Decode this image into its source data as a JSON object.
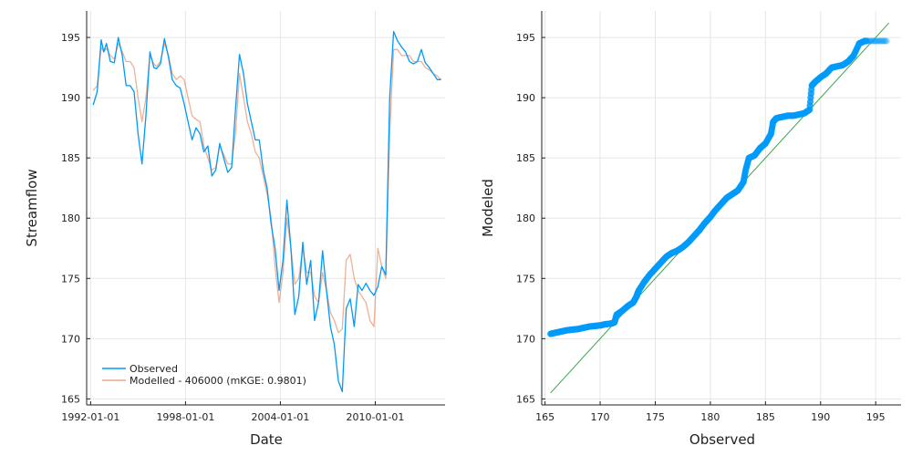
{
  "colors": {
    "observed": "#009af9",
    "modelled": "#e26f46",
    "scatter": "#009af9",
    "one_to_one": "#3da44d",
    "grid": "#e6e6e6",
    "axis": "#222222"
  },
  "chart_data": [
    {
      "type": "line",
      "xlabel": "Date",
      "ylabel": "Streamflow",
      "xticks": [
        "1992-01-01",
        "1998-01-01",
        "2004-01-01",
        "2010-01-01"
      ],
      "yticks": [
        165,
        170,
        175,
        180,
        185,
        190,
        195
      ],
      "xlim": [
        "1991-10-01",
        "2014-06-01"
      ],
      "ylim": [
        164.5,
        197.2
      ],
      "grid": true,
      "legend_position": "bottom-left",
      "series": [
        {
          "name": "Observed",
          "x": [
            "1992-03-01",
            "1992-06-01",
            "1992-09-01",
            "1992-11-01",
            "1993-01-01",
            "1993-04-01",
            "1993-07-01",
            "1993-10-01",
            "1994-01-01",
            "1994-04-01",
            "1994-07-01",
            "1994-10-01",
            "1995-01-01",
            "1995-04-01",
            "1995-07-01",
            "1995-10-01",
            "1996-01-01",
            "1996-03-01",
            "1996-06-01",
            "1996-09-01",
            "1996-12-01",
            "1997-03-01",
            "1997-06-01",
            "1997-09-01",
            "1997-12-01",
            "1998-03-01",
            "1998-06-01",
            "1998-09-01",
            "1998-12-01",
            "1999-03-01",
            "1999-06-01",
            "1999-09-01",
            "1999-12-01",
            "2000-03-01",
            "2000-06-01",
            "2000-09-01",
            "2000-12-01",
            "2001-03-01",
            "2001-06-01",
            "2001-09-01",
            "2001-12-01",
            "2002-03-01",
            "2002-06-01",
            "2002-09-01",
            "2002-12-01",
            "2003-03-01",
            "2003-06-01",
            "2003-09-01",
            "2003-12-01",
            "2004-03-01",
            "2004-06-01",
            "2004-09-01",
            "2004-12-01",
            "2005-03-01",
            "2005-06-01",
            "2005-09-01",
            "2005-12-01",
            "2006-03-01",
            "2006-06-01",
            "2006-09-01",
            "2006-12-01",
            "2007-03-01",
            "2007-06-01",
            "2007-09-01",
            "2007-12-01",
            "2008-03-01",
            "2008-06-01",
            "2008-09-01",
            "2008-12-01",
            "2009-03-01",
            "2009-06-01",
            "2009-09-01",
            "2009-12-01",
            "2010-03-01",
            "2010-06-01",
            "2010-09-01",
            "2010-12-01",
            "2011-03-01",
            "2011-06-01",
            "2011-09-01",
            "2011-12-01",
            "2012-03-01",
            "2012-06-01",
            "2012-09-01",
            "2012-12-01",
            "2013-03-01",
            "2013-06-01",
            "2013-09-01",
            "2013-12-01",
            "2014-03-01"
          ],
          "y": [
            189.4,
            190.5,
            194.8,
            193.8,
            194.5,
            193.0,
            192.9,
            195.0,
            193.5,
            191.0,
            191.0,
            190.5,
            187.0,
            184.5,
            188.5,
            193.8,
            192.5,
            192.4,
            192.8,
            194.9,
            193.4,
            191.5,
            191.0,
            190.8,
            189.5,
            188.0,
            186.5,
            187.5,
            187.0,
            185.5,
            186.0,
            183.5,
            184.0,
            186.2,
            185.0,
            183.8,
            184.2,
            189.0,
            193.6,
            192.0,
            189.5,
            188.0,
            186.5,
            186.5,
            184.0,
            182.5,
            179.5,
            177.5,
            174.0,
            176.5,
            181.5,
            177.5,
            172.0,
            173.5,
            178.0,
            174.5,
            176.5,
            171.5,
            173.0,
            177.3,
            174.0,
            171.0,
            169.5,
            166.5,
            165.6,
            172.5,
            173.3,
            171.0,
            174.5,
            174.0,
            174.6,
            174.0,
            173.6,
            174.3,
            176.0,
            175.3,
            190.0,
            195.5,
            194.7,
            194.2,
            193.8,
            193.0,
            192.8,
            193.0,
            194.0,
            192.9,
            192.5,
            192.0,
            191.5,
            191.5
          ]
        },
        {
          "name": "Modelled - 406000 (mKGE: 0.9801)",
          "x": [
            "1992-03-01",
            "1992-06-01",
            "1992-09-01",
            "1992-11-01",
            "1993-01-01",
            "1993-04-01",
            "1993-07-01",
            "1993-10-01",
            "1994-01-01",
            "1994-04-01",
            "1994-07-01",
            "1994-10-01",
            "1995-01-01",
            "1995-04-01",
            "1995-07-01",
            "1995-10-01",
            "1996-01-01",
            "1996-03-01",
            "1996-06-01",
            "1996-09-01",
            "1996-12-01",
            "1997-03-01",
            "1997-06-01",
            "1997-09-01",
            "1997-12-01",
            "1998-03-01",
            "1998-06-01",
            "1998-09-01",
            "1998-12-01",
            "1999-03-01",
            "1999-06-01",
            "1999-09-01",
            "1999-12-01",
            "2000-03-01",
            "2000-06-01",
            "2000-09-01",
            "2000-12-01",
            "2001-03-01",
            "2001-06-01",
            "2001-09-01",
            "2001-12-01",
            "2002-03-01",
            "2002-06-01",
            "2002-09-01",
            "2002-12-01",
            "2003-03-01",
            "2003-06-01",
            "2003-09-01",
            "2003-12-01",
            "2004-03-01",
            "2004-06-01",
            "2004-09-01",
            "2004-12-01",
            "2005-03-01",
            "2005-06-01",
            "2005-09-01",
            "2005-12-01",
            "2006-03-01",
            "2006-06-01",
            "2006-09-01",
            "2006-12-01",
            "2007-03-01",
            "2007-06-01",
            "2007-09-01",
            "2007-12-01",
            "2008-03-01",
            "2008-06-01",
            "2008-09-01",
            "2008-12-01",
            "2009-03-01",
            "2009-06-01",
            "2009-09-01",
            "2009-12-01",
            "2010-03-01",
            "2010-06-01",
            "2010-09-01",
            "2010-12-01",
            "2011-03-01",
            "2011-06-01",
            "2011-09-01",
            "2011-12-01",
            "2012-03-01",
            "2012-06-01",
            "2012-09-01",
            "2012-12-01",
            "2013-03-01",
            "2013-06-01",
            "2013-09-01",
            "2013-12-01",
            "2014-03-01"
          ],
          "y": [
            190.6,
            191.0,
            194.2,
            193.8,
            194.1,
            193.5,
            193.2,
            194.5,
            193.8,
            193.0,
            193.0,
            192.5,
            190.0,
            188.0,
            190.0,
            193.5,
            192.8,
            192.6,
            193.0,
            194.5,
            193.6,
            192.0,
            191.5,
            191.8,
            191.5,
            190.0,
            188.5,
            188.2,
            188.0,
            186.0,
            185.0,
            184.0,
            184.2,
            186.0,
            185.3,
            184.5,
            184.5,
            187.0,
            192.0,
            190.0,
            188.0,
            187.0,
            185.5,
            185.0,
            183.5,
            182.0,
            180.0,
            176.0,
            173.0,
            175.5,
            180.0,
            177.5,
            174.5,
            175.0,
            177.5,
            175.5,
            175.5,
            173.5,
            173.0,
            175.5,
            174.0,
            172.2,
            171.5,
            170.5,
            170.8,
            176.5,
            177.0,
            175.0,
            174.0,
            173.5,
            173.0,
            171.5,
            171.0,
            177.5,
            176.0,
            175.0,
            187.0,
            194.0,
            194.0,
            193.5,
            193.5,
            193.5,
            193.0,
            193.0,
            193.0,
            192.5,
            192.3,
            192.0,
            191.8,
            191.5
          ]
        }
      ]
    },
    {
      "type": "scatter",
      "xlabel": "Observed",
      "ylabel": "Modeled",
      "xticks": [
        165,
        170,
        175,
        180,
        185,
        190,
        195
      ],
      "yticks": [
        165,
        170,
        175,
        180,
        185,
        190,
        195
      ],
      "xlim": [
        164.7,
        197.3
      ],
      "ylim": [
        164.5,
        197.2
      ],
      "grid": true,
      "one_to_one_line": [
        [
          165.5,
          165.5
        ],
        [
          196.2,
          196.2
        ]
      ],
      "points": [
        [
          165.5,
          170.4
        ],
        [
          166.0,
          170.5
        ],
        [
          166.5,
          170.6
        ],
        [
          167.0,
          170.7
        ],
        [
          167.5,
          170.75
        ],
        [
          168.0,
          170.8
        ],
        [
          168.5,
          170.9
        ],
        [
          169.0,
          171.0
        ],
        [
          169.5,
          171.05
        ],
        [
          170.0,
          171.1
        ],
        [
          170.5,
          171.2
        ],
        [
          171.0,
          171.25
        ],
        [
          171.3,
          171.35
        ],
        [
          171.5,
          172.0
        ],
        [
          172.0,
          172.3
        ],
        [
          172.5,
          172.7
        ],
        [
          173.0,
          173.0
        ],
        [
          173.3,
          173.5
        ],
        [
          173.5,
          174.0
        ],
        [
          174.0,
          174.7
        ],
        [
          174.5,
          175.3
        ],
        [
          175.0,
          175.8
        ],
        [
          175.5,
          176.3
        ],
        [
          176.0,
          176.8
        ],
        [
          176.5,
          177.1
        ],
        [
          177.0,
          177.3
        ],
        [
          177.5,
          177.6
        ],
        [
          178.0,
          178.0
        ],
        [
          178.5,
          178.5
        ],
        [
          179.0,
          179.0
        ],
        [
          179.5,
          179.6
        ],
        [
          180.0,
          180.1
        ],
        [
          180.5,
          180.7
        ],
        [
          181.0,
          181.2
        ],
        [
          181.5,
          181.7
        ],
        [
          182.0,
          182.0
        ],
        [
          182.5,
          182.3
        ],
        [
          183.0,
          183.0
        ],
        [
          183.2,
          184.0
        ],
        [
          183.5,
          185.0
        ],
        [
          184.0,
          185.2
        ],
        [
          184.5,
          185.8
        ],
        [
          185.0,
          186.2
        ],
        [
          185.5,
          187.0
        ],
        [
          185.7,
          188.0
        ],
        [
          186.0,
          188.3
        ],
        [
          186.5,
          188.4
        ],
        [
          187.0,
          188.5
        ],
        [
          187.5,
          188.5
        ],
        [
          188.0,
          188.6
        ],
        [
          188.5,
          188.7
        ],
        [
          189.0,
          189.0
        ],
        [
          189.2,
          191.0
        ],
        [
          189.5,
          191.3
        ],
        [
          190.0,
          191.7
        ],
        [
          190.5,
          192.0
        ],
        [
          191.0,
          192.5
        ],
        [
          191.5,
          192.6
        ],
        [
          192.0,
          192.7
        ],
        [
          192.5,
          193.0
        ],
        [
          193.0,
          193.5
        ],
        [
          193.5,
          194.5
        ],
        [
          194.0,
          194.7
        ],
        [
          194.5,
          194.7
        ],
        [
          195.0,
          194.7
        ],
        [
          195.5,
          194.7
        ],
        [
          196.0,
          194.7
        ]
      ]
    }
  ]
}
